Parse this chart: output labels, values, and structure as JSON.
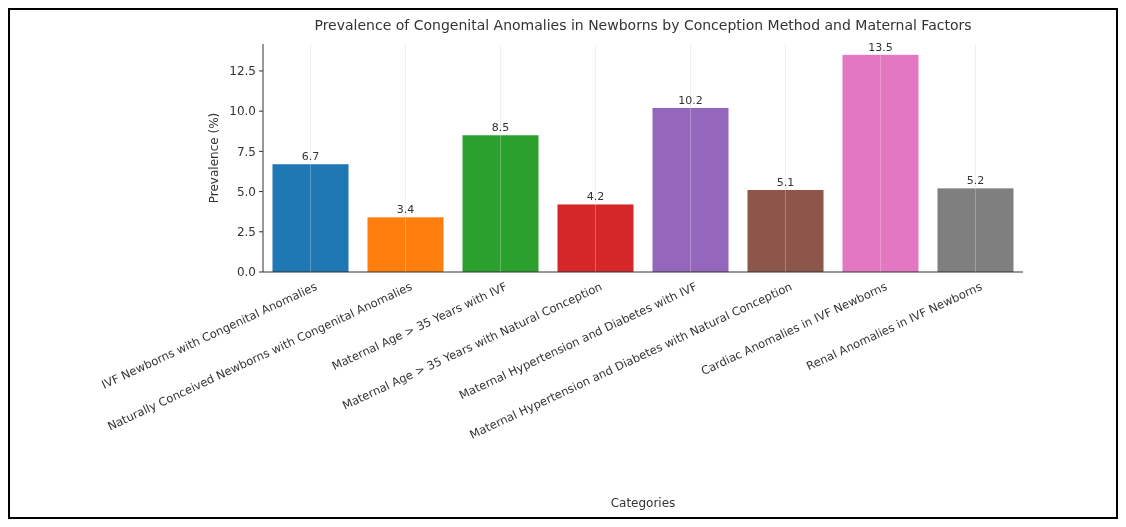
{
  "chart_data": {
    "type": "bar",
    "title": "Prevalence of Congenital Anomalies in Newborns by Conception Method and Maternal Factors",
    "xlabel": "Categories",
    "ylabel": "Prevalence (%)",
    "categories": [
      "IVF Newborns with Congenital Anomalies",
      "Naturally Conceived Newborns with Congenital Anomalies",
      "Maternal Age > 35 Years with IVF",
      "Maternal Age > 35 Years with Natural Conception",
      "Maternal Hypertension and Diabetes with IVF",
      "Maternal Hypertension and Diabetes with Natural Conception",
      "Cardiac Anomalies in IVF Newborns",
      "Renal Anomalies in IVF Newborns"
    ],
    "values": [
      6.7,
      3.4,
      8.5,
      4.2,
      10.2,
      5.1,
      13.5,
      5.2
    ],
    "colors": [
      "#1f77b4",
      "#ff7f0e",
      "#2ca02c",
      "#d62728",
      "#9467bd",
      "#8c564b",
      "#e377c2",
      "#7f7f7f"
    ],
    "ylim": [
      0,
      14.175
    ],
    "yticks": [
      {
        "value": 0,
        "label": "0.0"
      },
      {
        "value": 2.5,
        "label": "2.5"
      },
      {
        "value": 5,
        "label": "5.0"
      },
      {
        "value": 7.5,
        "label": "7.5"
      },
      {
        "value": 10,
        "label": "10.0"
      },
      {
        "value": 12.5,
        "label": "12.5"
      }
    ],
    "grid": "x",
    "data_labels": true
  }
}
